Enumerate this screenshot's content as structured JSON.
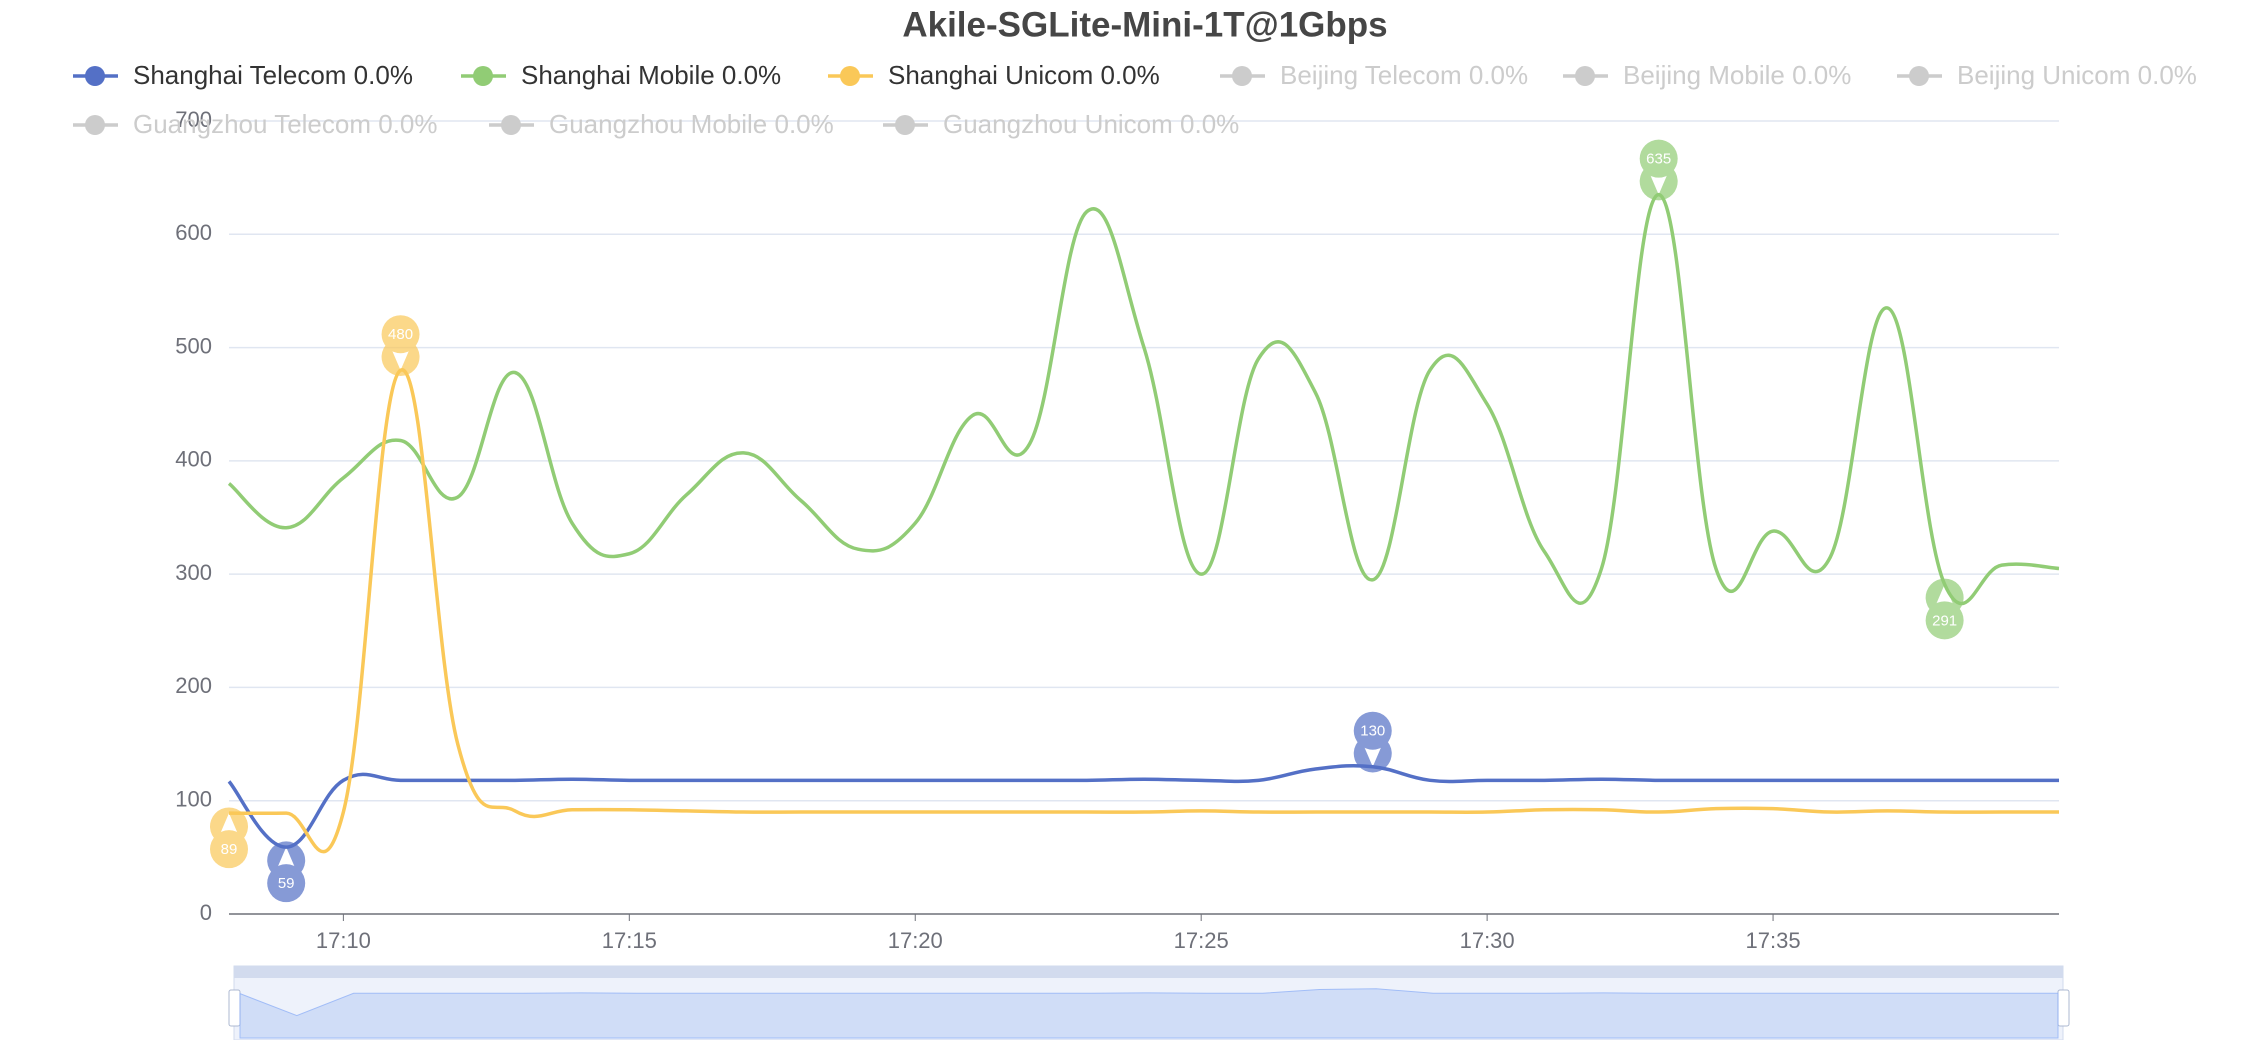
{
  "chart_data": {
    "type": "line",
    "title": "Akile-SGLite-Mini-1T@1Gbps",
    "categories": [
      null,
      null,
      "17:10",
      null,
      null,
      null,
      null,
      "17:15",
      null,
      null,
      null,
      null,
      "17:20",
      null,
      null,
      null,
      null,
      "17:25",
      null,
      null,
      null,
      null,
      "17:30",
      null,
      null,
      null,
      null,
      "17:35",
      null,
      null,
      null,
      null,
      null
    ],
    "ylim": [
      0,
      700
    ],
    "yticks": [
      0,
      100,
      200,
      300,
      400,
      500,
      600,
      700
    ],
    "grid": true,
    "series": [
      {
        "name": "Shanghai Telecom 0.0%",
        "color": "#5470c6",
        "values": [
          117,
          59,
          118,
          118,
          118,
          118,
          119,
          118,
          118,
          118,
          118,
          118,
          118,
          118,
          118,
          118,
          119,
          118,
          118,
          128,
          130,
          118,
          118,
          118,
          119,
          118,
          118,
          118,
          118,
          118,
          118,
          118,
          118
        ]
      },
      {
        "name": "Shanghai Mobile 0.0%",
        "color": "#91cc75",
        "values": [
          380,
          341,
          385,
          418,
          368,
          478,
          345,
          318,
          370,
          407,
          365,
          322,
          345,
          440,
          415,
          620,
          500,
          300,
          490,
          460,
          295,
          480,
          450,
          320,
          305,
          635,
          305,
          338,
          315,
          535,
          291,
          308,
          305
        ]
      },
      {
        "name": "Shanghai Unicom 0.0%",
        "color": "#fac858",
        "values": [
          89,
          89,
          90,
          480,
          150,
          91,
          92,
          92,
          91,
          90,
          90,
          90,
          90,
          90,
          90,
          90,
          90,
          91,
          90,
          90,
          90,
          90,
          90,
          92,
          92,
          90,
          93,
          93,
          90,
          91,
          90,
          90,
          90
        ]
      },
      {
        "name": "Beijing Telecom 0.0%",
        "color": "#cccccc"
      },
      {
        "name": "Beijing Mobile 0.0%",
        "color": "#cccccc"
      },
      {
        "name": "Beijing Unicom 0.0%",
        "color": "#cccccc"
      },
      {
        "name": "Guangzhou Telecom 0.0%",
        "color": "#cccccc"
      },
      {
        "name": "Guangzhou Mobile 0.0%",
        "color": "#cccccc"
      },
      {
        "name": "Guangzhou Unicom 0.0%",
        "color": "#cccccc"
      }
    ]
  }
}
